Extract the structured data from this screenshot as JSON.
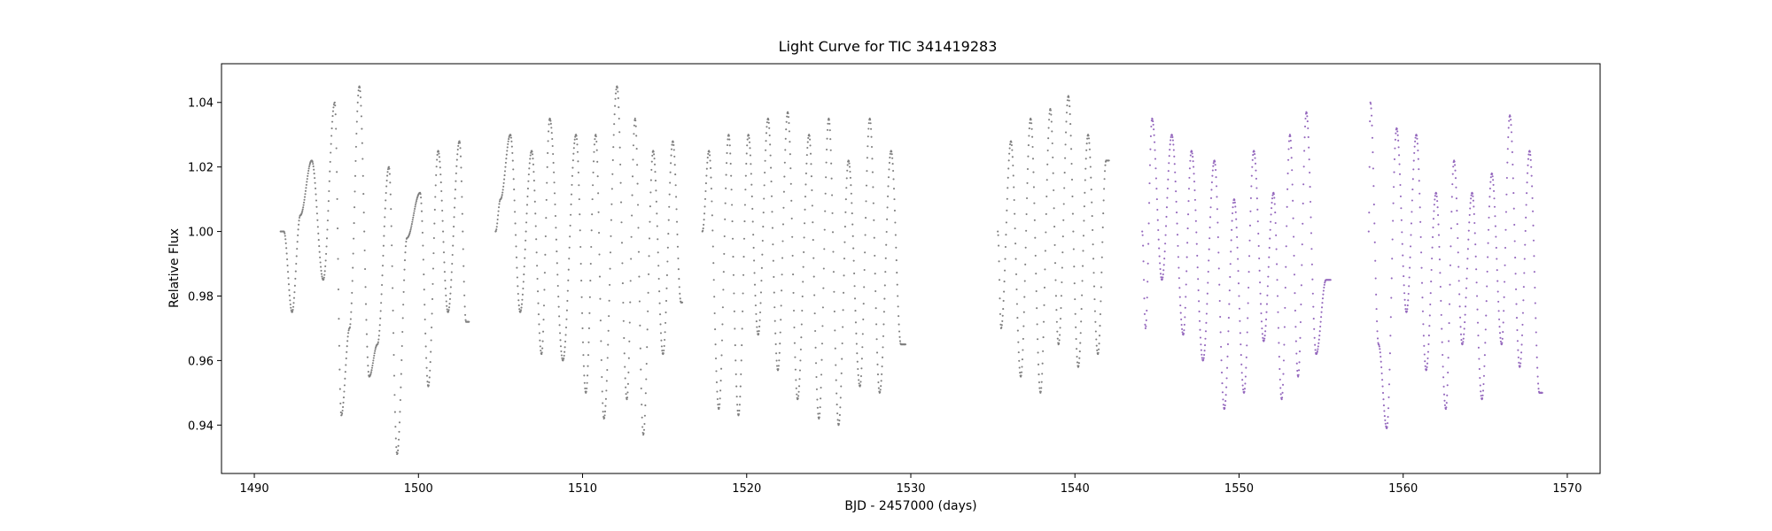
{
  "chart_data": {
    "type": "scatter",
    "title": "Light Curve for TIC 341419283",
    "xlabel": "BJD - 2457000 (days)",
    "ylabel": "Relative Flux",
    "xlim": [
      1488,
      1572
    ],
    "ylim": [
      0.925,
      1.052
    ],
    "xticks": [
      1490,
      1500,
      1510,
      1520,
      1530,
      1540,
      1550,
      1560,
      1570
    ],
    "yticks": [
      0.94,
      0.96,
      0.98,
      1.0,
      1.02,
      1.04
    ],
    "xtick_labels": [
      "1490",
      "1500",
      "1510",
      "1520",
      "1530",
      "1540",
      "1550",
      "1560",
      "1570"
    ],
    "ytick_labels": [
      "0.94",
      "0.96",
      "0.98",
      "1.00",
      "1.02",
      "1.04"
    ],
    "grid": false,
    "legend": "none",
    "series": [
      {
        "color": "#7f7f7f",
        "segments": [
          {
            "x_start": 1491.6,
            "x_end": 1503.1
          },
          {
            "x_start": 1504.7,
            "x_end": 1516.1
          },
          {
            "x_start": 1517.3,
            "x_end": 1529.7
          },
          {
            "x_start": 1535.3,
            "x_end": 1542.1
          }
        ],
        "points": [
          [
            1491.8,
            1.0
          ],
          [
            1492.3,
            0.975
          ],
          [
            1492.8,
            1.005
          ],
          [
            1493.5,
            1.022
          ],
          [
            1494.2,
            0.985
          ],
          [
            1494.9,
            1.04
          ],
          [
            1495.3,
            0.943
          ],
          [
            1495.8,
            0.97
          ],
          [
            1496.4,
            1.045
          ],
          [
            1497.0,
            0.955
          ],
          [
            1497.5,
            0.965
          ],
          [
            1498.2,
            1.02
          ],
          [
            1498.7,
            0.931
          ],
          [
            1499.3,
            0.998
          ],
          [
            1500.1,
            1.012
          ],
          [
            1500.6,
            0.952
          ],
          [
            1501.2,
            1.025
          ],
          [
            1501.8,
            0.975
          ],
          [
            1502.5,
            1.028
          ],
          [
            1502.9,
            0.972
          ],
          [
            1505.0,
            1.01
          ],
          [
            1505.6,
            1.03
          ],
          [
            1506.2,
            0.975
          ],
          [
            1506.9,
            1.025
          ],
          [
            1507.5,
            0.962
          ],
          [
            1508.0,
            1.035
          ],
          [
            1508.8,
            0.96
          ],
          [
            1509.6,
            1.03
          ],
          [
            1510.2,
            0.95
          ],
          [
            1510.8,
            1.03
          ],
          [
            1511.3,
            0.942
          ],
          [
            1512.1,
            1.045
          ],
          [
            1512.7,
            0.948
          ],
          [
            1513.2,
            1.035
          ],
          [
            1513.7,
            0.937
          ],
          [
            1514.3,
            1.025
          ],
          [
            1514.9,
            0.962
          ],
          [
            1515.5,
            1.028
          ],
          [
            1516.0,
            0.978
          ],
          [
            1517.7,
            1.025
          ],
          [
            1518.3,
            0.945
          ],
          [
            1518.9,
            1.03
          ],
          [
            1519.5,
            0.943
          ],
          [
            1520.1,
            1.03
          ],
          [
            1520.7,
            0.968
          ],
          [
            1521.3,
            1.035
          ],
          [
            1521.9,
            0.957
          ],
          [
            1522.5,
            1.037
          ],
          [
            1523.1,
            0.948
          ],
          [
            1523.8,
            1.03
          ],
          [
            1524.4,
            0.942
          ],
          [
            1525.0,
            1.035
          ],
          [
            1525.6,
            0.94
          ],
          [
            1526.2,
            1.022
          ],
          [
            1526.9,
            0.952
          ],
          [
            1527.5,
            1.035
          ],
          [
            1528.1,
            0.95
          ],
          [
            1528.8,
            1.025
          ],
          [
            1529.4,
            0.965
          ],
          [
            1535.5,
            0.97
          ],
          [
            1536.1,
            1.028
          ],
          [
            1536.7,
            0.955
          ],
          [
            1537.3,
            1.035
          ],
          [
            1537.9,
            0.95
          ],
          [
            1538.5,
            1.038
          ],
          [
            1539.0,
            0.965
          ],
          [
            1539.6,
            1.042
          ],
          [
            1540.2,
            0.958
          ],
          [
            1540.8,
            1.03
          ],
          [
            1541.4,
            0.962
          ],
          [
            1541.9,
            1.022
          ]
        ]
      },
      {
        "color": "#9467bd",
        "segments": [
          {
            "x_start": 1544.1,
            "x_end": 1555.6
          },
          {
            "x_start": 1557.9,
            "x_end": 1568.5
          }
        ],
        "points": [
          [
            1544.3,
            0.97
          ],
          [
            1544.7,
            1.035
          ],
          [
            1545.3,
            0.985
          ],
          [
            1545.9,
            1.03
          ],
          [
            1546.6,
            0.968
          ],
          [
            1547.1,
            1.025
          ],
          [
            1547.8,
            0.96
          ],
          [
            1548.5,
            1.022
          ],
          [
            1549.1,
            0.945
          ],
          [
            1549.7,
            1.01
          ],
          [
            1550.3,
            0.95
          ],
          [
            1550.9,
            1.025
          ],
          [
            1551.5,
            0.966
          ],
          [
            1552.1,
            1.012
          ],
          [
            1552.6,
            0.948
          ],
          [
            1553.1,
            1.03
          ],
          [
            1553.6,
            0.955
          ],
          [
            1554.1,
            1.037
          ],
          [
            1554.7,
            0.962
          ],
          [
            1555.3,
            0.985
          ],
          [
            1558.0,
            1.04
          ],
          [
            1558.5,
            0.965
          ],
          [
            1559.0,
            0.939
          ],
          [
            1559.6,
            1.032
          ],
          [
            1560.2,
            0.975
          ],
          [
            1560.8,
            1.03
          ],
          [
            1561.4,
            0.957
          ],
          [
            1562.0,
            1.012
          ],
          [
            1562.6,
            0.945
          ],
          [
            1563.1,
            1.022
          ],
          [
            1563.6,
            0.965
          ],
          [
            1564.2,
            1.012
          ],
          [
            1564.8,
            0.948
          ],
          [
            1565.4,
            1.018
          ],
          [
            1566.0,
            0.965
          ],
          [
            1566.5,
            1.036
          ],
          [
            1567.1,
            0.958
          ],
          [
            1567.7,
            1.025
          ],
          [
            1568.3,
            0.95
          ]
        ]
      }
    ]
  }
}
